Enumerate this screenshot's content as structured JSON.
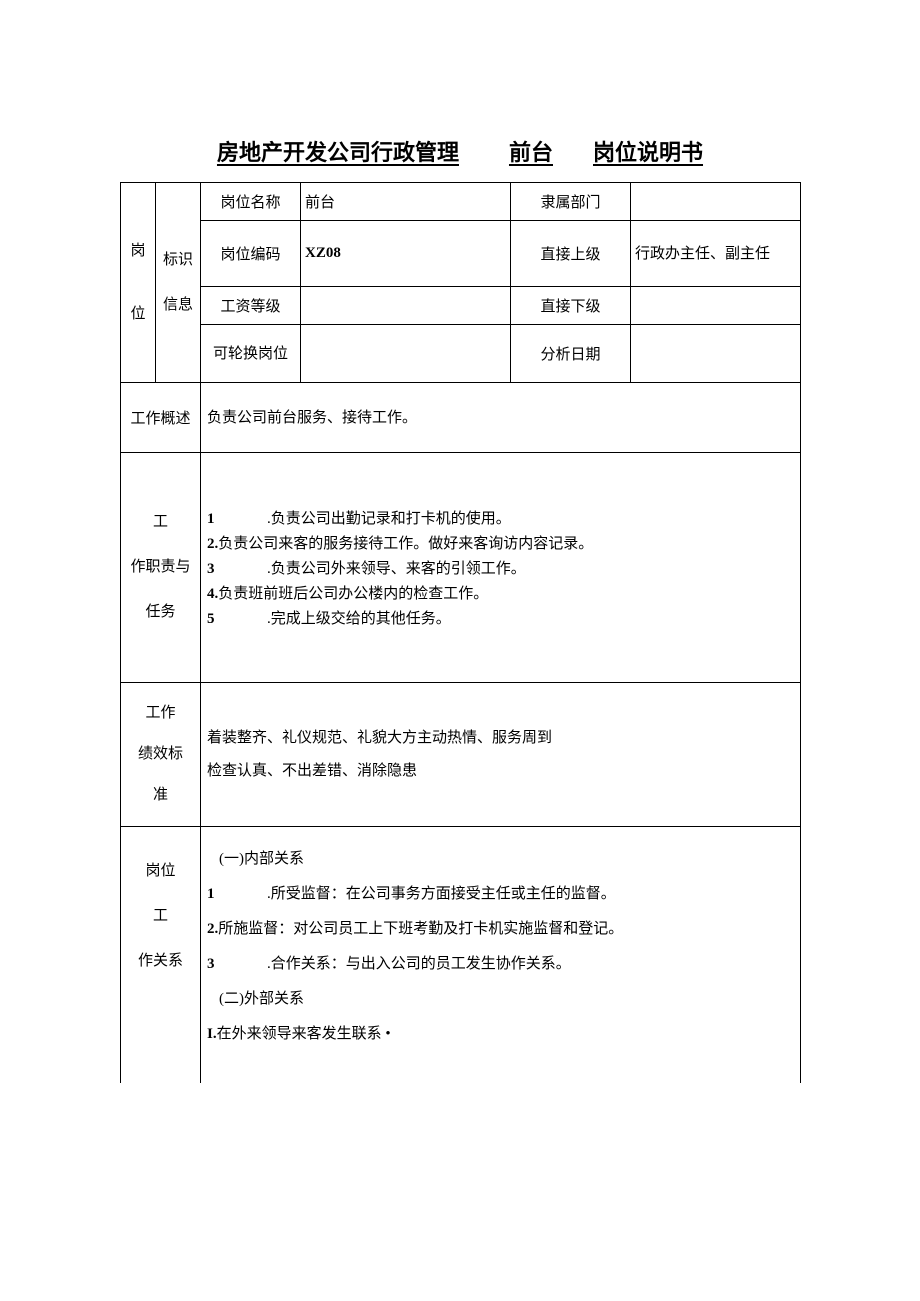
{
  "title": {
    "part1": "房地产开发公司行政管理",
    "part2": "前台",
    "part3": "岗位说明书"
  },
  "header": {
    "id_label": "岗位标识信息",
    "id_col1": "岗",
    "id_col2": "位",
    "id_col_mid": "标识信息",
    "rows": {
      "r1c1": "岗位名称",
      "r1c2": "前台",
      "r1c3": "隶属部门",
      "r1c4": "",
      "r2c1": "岗位编码",
      "r2c2": "XZ08",
      "r2c3": "直接上级",
      "r2c4": "行政办主任、副主任",
      "r3c1": "工资等级",
      "r3c2": "",
      "r3c3": "直接下级",
      "r3c4": "",
      "r4c1": "可轮换岗位",
      "r4c2": "",
      "r4c3": "分析日期",
      "r4c4": ""
    }
  },
  "overview": {
    "label": "工作概述",
    "text": "负责公司前台服务、接待工作。"
  },
  "duties": {
    "label": "工作职责与任务",
    "items": [
      {
        "n": "1",
        "wide": true,
        "text": ".负责公司出勤记录和打卡机的使用。"
      },
      {
        "n": "2.",
        "wide": false,
        "text": "负责公司来客的服务接待工作。做好来客询访内容记录。"
      },
      {
        "n": "3",
        "wide": true,
        "text": ".负责公司外来领导、来客的引领工作。"
      },
      {
        "n": "4.",
        "wide": false,
        "text": "负责班前班后公司办公楼内的检查工作。"
      },
      {
        "n": "5",
        "wide": true,
        "text": ".完成上级交给的其他任务。"
      }
    ]
  },
  "standard": {
    "label": "工作绩效标准",
    "line1": "着装整齐、礼仪规范、礼貌大方主动热情、服务周到",
    "line2": "检查认真、不出差错、消除隐患"
  },
  "relations": {
    "label": "岗位工作关系",
    "head1": "(一)内部关系",
    "items1": [
      {
        "n": "1",
        "wide": true,
        "text": ".所受监督：在公司事务方面接受主任或主任的监督。"
      },
      {
        "n": "2.",
        "wide": false,
        "text": "所施监督：对公司员工上下班考勤及打卡机实施监督和登记。"
      },
      {
        "n": "3",
        "wide": true,
        "text": ".合作关系：与出入公司的员工发生协作关系。"
      }
    ],
    "head2": "(二)外部关系",
    "items2": [
      {
        "n": "I.",
        "wide": false,
        "text": "在外来领导来客发生联系 •"
      }
    ]
  },
  "colors": {
    "border": "#000000",
    "bg": "#ffffff",
    "text": "#000000"
  }
}
